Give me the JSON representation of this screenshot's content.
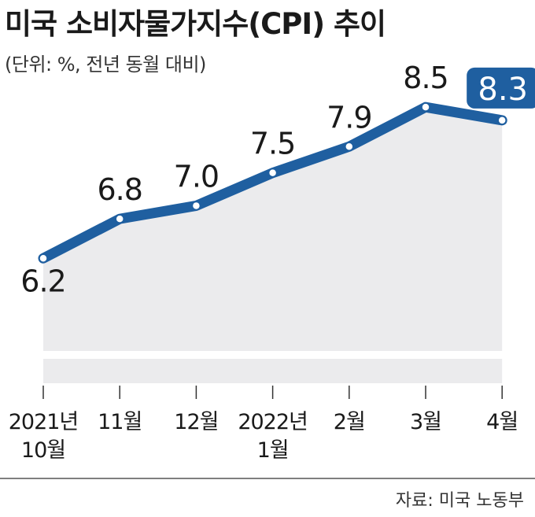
{
  "header": {
    "title": "미국 소비자물가지수(CPI) 추이",
    "subtitle": "(단위: %, 전년 동월 대비)"
  },
  "footer": {
    "source": "자료: 미국 노동부"
  },
  "colors": {
    "line": "#1f5fa0",
    "area": "#ebebed",
    "highlight_box": "#1f5fa0",
    "text": "#1a1a1a"
  },
  "chart_data": {
    "type": "line",
    "title": "미국 소비자물가지수(CPI) 추이",
    "subtitle": "(단위: %, 전년 동월 대비)",
    "categories": [
      [
        "2021년",
        "10월"
      ],
      [
        "11월"
      ],
      [
        "12월"
      ],
      [
        "2022년",
        "1월"
      ],
      [
        "2월"
      ],
      [
        "3월"
      ],
      [
        "4월"
      ]
    ],
    "values": [
      6.2,
      6.8,
      7.0,
      7.5,
      7.9,
      8.5,
      8.3
    ],
    "highlight_index": 6,
    "ylim": [
      4.0,
      9.0
    ],
    "grid": false,
    "source": "자료: 미국 노동부"
  }
}
